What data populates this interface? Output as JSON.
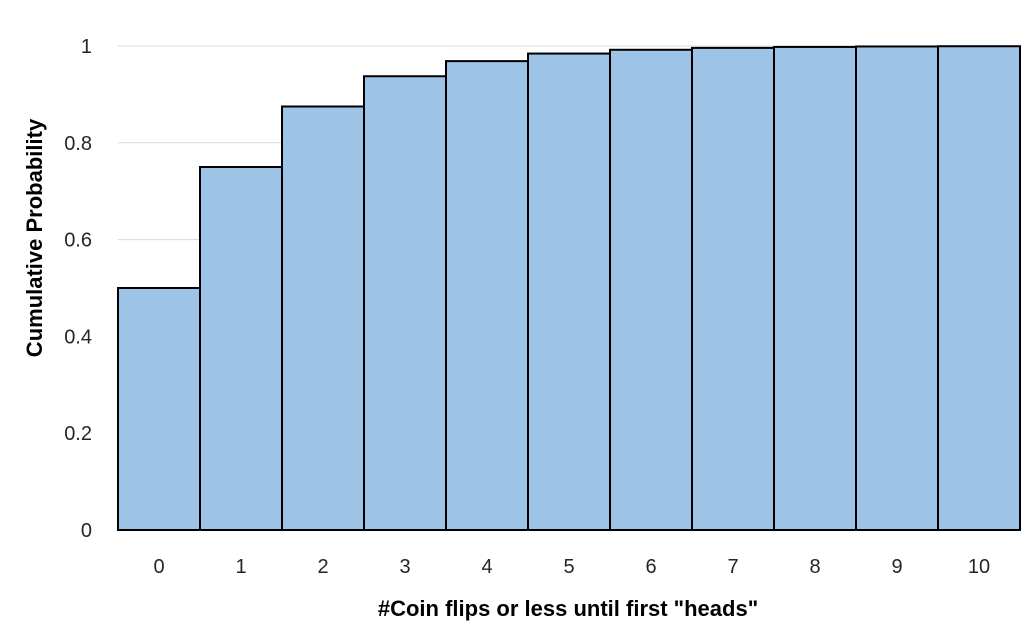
{
  "chart_data": {
    "type": "bar",
    "categories": [
      "0",
      "1",
      "2",
      "3",
      "4",
      "5",
      "6",
      "7",
      "8",
      "9",
      "10"
    ],
    "values": [
      0.5,
      0.75,
      0.875,
      0.9375,
      0.96875,
      0.984375,
      0.9921875,
      0.99609375,
      0.998046875,
      0.9990234375,
      0.99951171875
    ],
    "xlabel": "#Coin flips or less until first \"heads\"",
    "ylabel": "Cumulative Probability",
    "ylim": [
      0,
      1
    ],
    "yticks": [
      0,
      0.2,
      0.4,
      0.6,
      0.8,
      1
    ],
    "ytick_labels": [
      "0",
      "0.2",
      "0.4",
      "0.6",
      "0.8",
      "1"
    ],
    "grid": true,
    "bar_gap": "none",
    "colors": {
      "bar_fill": "#9dc3e6",
      "bar_stroke": "#000000",
      "grid": "#d9d9d9"
    }
  }
}
